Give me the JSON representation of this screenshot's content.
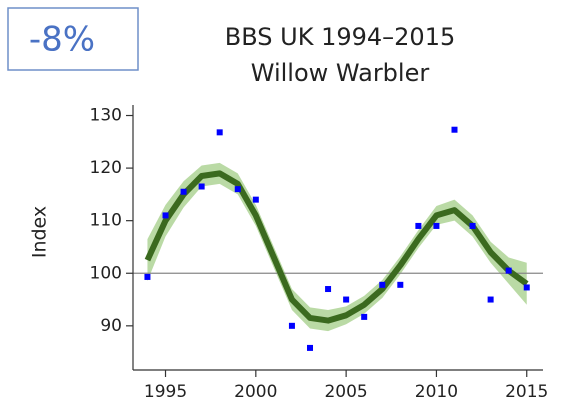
{
  "badge": "-8%",
  "chart_data": {
    "type": "scatter",
    "title": [
      "BBS UK 1994–2015",
      "Willow Warbler"
    ],
    "y_label": "Index",
    "x": [
      1994,
      1995,
      1996,
      1997,
      1998,
      1999,
      2000,
      2001,
      2002,
      2003,
      2004,
      2005,
      2006,
      2007,
      2008,
      2009,
      2010,
      2011,
      2012,
      2013,
      2014,
      2015
    ],
    "values": [
      99.3,
      111,
      115.5,
      116.5,
      126.8,
      116,
      114,
      null,
      90,
      85.8,
      97,
      95,
      91.7,
      97.8,
      97.8,
      109,
      109,
      127.3,
      109,
      95,
      100.5,
      97.3
    ],
    "trend": [
      102.5,
      110,
      115,
      118.5,
      119,
      117,
      111,
      103,
      95,
      91.5,
      91,
      92,
      94,
      97,
      101.5,
      106.5,
      111,
      112,
      109,
      104,
      100.5,
      98
    ],
    "trend_lower": [
      98.5,
      107,
      112.5,
      116.5,
      117,
      115,
      109,
      101,
      93,
      89.5,
      89,
      90.3,
      92.3,
      95.3,
      99.8,
      104.8,
      109.2,
      110,
      107,
      102,
      98,
      94
    ],
    "trend_upper": [
      106.5,
      113,
      117.5,
      120.5,
      121,
      119,
      113,
      105,
      97,
      93.5,
      93,
      93.7,
      95.7,
      98.7,
      103.2,
      108.2,
      112.8,
      114,
      111,
      106,
      103,
      102
    ],
    "point_color": "#0000ff",
    "trend_color": "#3b6a1f",
    "band_color": "#a9d18e",
    "reference_line": 100,
    "xlim": [
      1993.2,
      2015.9
    ],
    "ylim": [
      81.6,
      132
    ],
    "xticks": [
      1995,
      2000,
      2005,
      2010,
      2015
    ],
    "yticks": [
      90,
      100,
      110,
      120,
      130
    ]
  }
}
